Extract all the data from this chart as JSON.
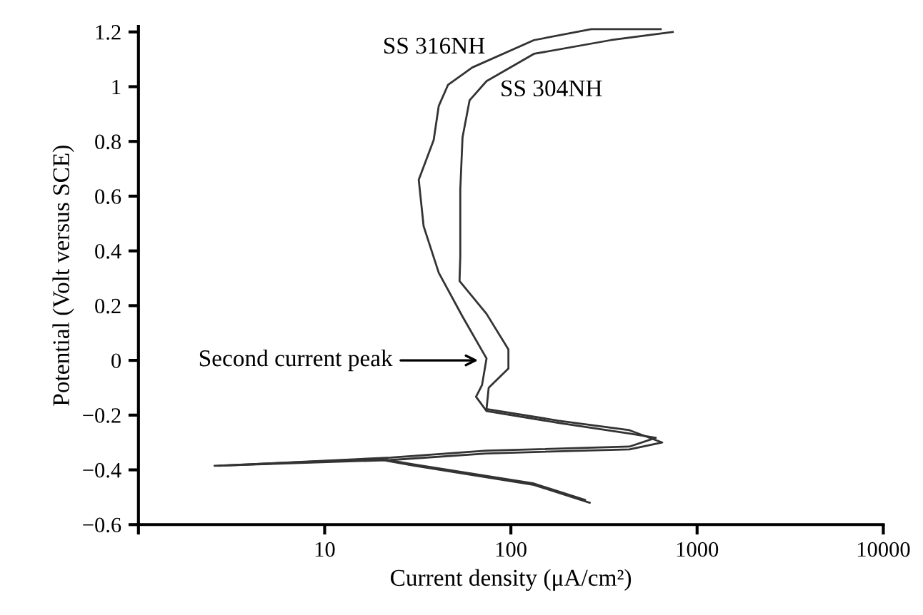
{
  "chart_data": {
    "type": "line",
    "xlabel": "Current density (μA/cm²)",
    "ylabel": "Potential (Volt versus SCE)",
    "log": "x",
    "xlim": [
      1,
      10000
    ],
    "xticks": [
      {
        "value": 1,
        "label": null
      },
      10,
      100,
      1000,
      10000
    ],
    "ylim": [
      -0.6,
      1.22
    ],
    "yticks": [
      {
        "value": -0.6,
        "label": "−0.6"
      },
      {
        "value": -0.4,
        "label": "−0.4"
      },
      {
        "value": -0.2,
        "label": "−0.2"
      },
      0,
      0.2,
      0.4,
      0.6,
      0.8,
      1,
      1.2
    ],
    "grid": false,
    "marker": "none",
    "line_style": "solid",
    "series": [
      {
        "name": "SS 316NH",
        "color": "#333333",
        "x": [
          250,
          133,
          30,
          20,
          2.7,
          22.6,
          74,
          433,
          600,
          433,
          179,
          74,
          65,
          70,
          74,
          55,
          41,
          34,
          32,
          38.5,
          41,
          46,
          62,
          133,
          270,
          638
        ],
        "values": [
          -0.51,
          -0.45,
          -0.38,
          -0.36,
          -0.385,
          -0.355,
          -0.33,
          -0.315,
          -0.283,
          -0.267,
          -0.228,
          -0.185,
          -0.133,
          -0.09,
          0.007,
          0.16,
          0.32,
          0.49,
          0.66,
          0.805,
          0.93,
          1.007,
          1.07,
          1.17,
          1.21,
          1.21
        ]
      },
      {
        "name": "SS 304NH",
        "color": "#333333",
        "x": [
          265,
          133,
          30.5,
          18.9,
          2.56,
          22.6,
          74,
          433,
          650,
          433,
          179,
          74,
          76,
          97,
          97,
          74,
          53,
          53.5,
          53.5,
          55,
          60,
          74,
          133,
          344,
          740
        ],
        "values": [
          -0.52,
          -0.455,
          -0.385,
          -0.36,
          -0.385,
          -0.364,
          -0.34,
          -0.325,
          -0.3,
          -0.255,
          -0.22,
          -0.178,
          -0.1,
          -0.03,
          0.04,
          0.17,
          0.29,
          0.38,
          0.625,
          0.815,
          0.95,
          1.02,
          1.12,
          1.17,
          1.2
        ]
      }
    ],
    "annotations": [
      {
        "text": "Second current peak",
        "x": 70,
        "y": 0
      }
    ]
  }
}
